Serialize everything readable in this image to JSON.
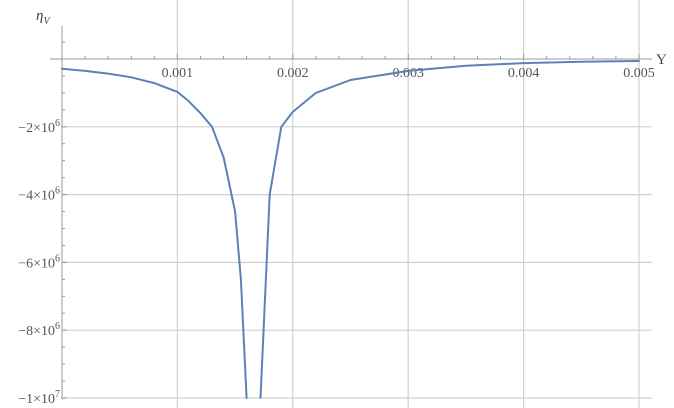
{
  "chart_data": {
    "type": "line",
    "title": "",
    "xlabel": "Y",
    "ylabel": "η_V",
    "ylabel_main": "η",
    "ylabel_sub": "V",
    "xlim": [
      0,
      0.005
    ],
    "ylim": [
      -10000000,
      800000
    ],
    "grid": true,
    "legend": null,
    "x_ticks": [
      {
        "value": 0.001,
        "label": "0.001"
      },
      {
        "value": 0.002,
        "label": "0.002"
      },
      {
        "value": 0.003,
        "label": "0.003"
      },
      {
        "value": 0.004,
        "label": "0.004"
      },
      {
        "value": 0.005,
        "label": "0.005"
      }
    ],
    "y_ticks": [
      {
        "value": -2000000,
        "label": "−2×10",
        "exp": "6"
      },
      {
        "value": -4000000,
        "label": "−4×10",
        "exp": "6"
      },
      {
        "value": -6000000,
        "label": "−6×10",
        "exp": "6"
      },
      {
        "value": -8000000,
        "label": "−8×10",
        "exp": "6"
      },
      {
        "value": -10000000,
        "label": "−1×10",
        "exp": "7"
      }
    ],
    "series": [
      {
        "name": "η_V",
        "color": "#5e81b5",
        "segments": [
          {
            "x": [
              0.0,
              0.0002,
              0.0004,
              0.0006,
              0.0008,
              0.001,
              0.0011,
              0.0012,
              0.0013,
              0.0014,
              0.0015,
              0.00155,
              0.0016
            ],
            "y": [
              -290000,
              -350000,
              -430000,
              -540000,
              -710000,
              -970000,
              -1250000,
              -1600000,
              -2000000,
              -2900000,
              -4500000,
              -6500000,
              -10000000
            ]
          },
          {
            "x": [
              0.00172,
              0.0018,
              0.0019,
              0.002,
              0.0022,
              0.0025,
              0.003,
              0.0035,
              0.004,
              0.0045,
              0.005
            ],
            "y": [
              -10000000,
              -4000000,
              -2000000,
              -1560000,
              -1000000,
              -620000,
              -350000,
              -200000,
              -120000,
              -80000,
              -60000
            ]
          }
        ]
      }
    ]
  },
  "colors": {
    "line": "#5e81b5",
    "grid": "#d0d0d0",
    "axis": "#999999",
    "text": "#555555"
  }
}
